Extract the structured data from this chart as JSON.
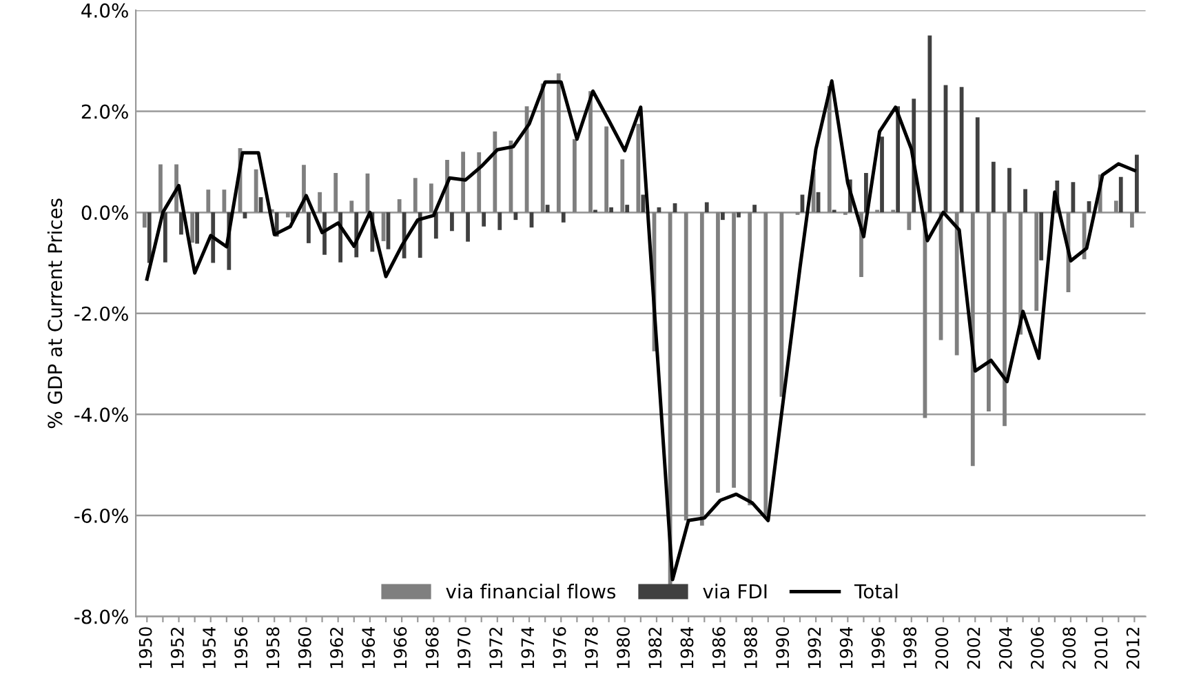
{
  "chart_data": {
    "type": "bar",
    "ylabel": "% GDP at Current Prices",
    "categories": [
      "1950",
      null,
      "1952",
      null,
      "1954",
      null,
      "1956",
      null,
      "1958",
      null,
      "1960",
      null,
      "1962",
      null,
      "1964",
      null,
      "1966",
      null,
      "1968",
      null,
      "1970",
      null,
      "1972",
      null,
      "1974",
      null,
      "1976",
      null,
      "1978",
      null,
      "1980",
      null,
      "1982",
      null,
      "1984",
      null,
      "1986",
      null,
      "1988",
      null,
      "1990",
      null,
      "1992",
      null,
      "1994",
      null,
      "1996",
      null,
      "1998",
      null,
      "2000",
      null,
      "2002",
      null,
      "2004",
      null,
      "2006",
      null,
      "2008",
      null,
      "2010",
      null,
      "2012"
    ],
    "series": [
      {
        "name": "via financial flows",
        "color": "#7f7f7f",
        "values": [
          -0.3,
          0.95,
          0.95,
          -0.6,
          0.45,
          0.45,
          1.27,
          0.85,
          0.06,
          -0.1,
          0.94,
          0.4,
          0.78,
          0.23,
          0.77,
          -0.57,
          0.26,
          0.68,
          0.57,
          1.04,
          1.2,
          1.19,
          1.6,
          1.42,
          2.1,
          2.55,
          2.75,
          1.45,
          2.4,
          1.7,
          1.05,
          1.75,
          -2.75,
          -7.4,
          -6.1,
          -6.2,
          -5.55,
          -5.45,
          -5.8,
          -6.0,
          -3.65,
          -0.05,
          0.85,
          2.5,
          -0.05,
          -1.28,
          0.05,
          0.05,
          -0.35,
          -4.07,
          -2.53,
          -2.83,
          -5.02,
          -3.94,
          -4.23,
          -2.42,
          -1.95,
          null,
          -1.58,
          -0.93,
          0.75,
          0.23,
          -0.3
        ]
      },
      {
        "name": "via FDI",
        "color": "#404040",
        "values": [
          -1.0,
          -0.99,
          -0.44,
          -0.62,
          -1.0,
          -1.14,
          -0.12,
          0.3,
          -0.48,
          -0.18,
          -0.61,
          -0.84,
          -0.99,
          -0.89,
          -0.78,
          -0.73,
          -0.91,
          -0.9,
          -0.52,
          -0.37,
          -0.58,
          -0.28,
          -0.35,
          -0.15,
          -0.3,
          0.15,
          -0.2,
          0.0,
          0.05,
          0.1,
          0.15,
          0.35,
          0.1,
          0.18,
          0.0,
          0.2,
          -0.15,
          -0.1,
          0.15,
          0.0,
          0.0,
          0.35,
          0.4,
          0.05,
          0.65,
          0.78,
          1.5,
          2.1,
          2.25,
          3.5,
          2.52,
          2.48,
          1.88,
          1.0,
          0.88,
          0.46,
          -0.95,
          0.63,
          0.6,
          0.22,
          0.0,
          0.7,
          1.14
        ]
      },
      {
        "name": "Total",
        "type": "line",
        "color": "#000000",
        "values": [
          -1.32,
          0.0,
          0.53,
          -1.2,
          -0.46,
          -0.68,
          1.18,
          1.18,
          -0.44,
          -0.28,
          0.33,
          -0.4,
          -0.21,
          -0.67,
          0.0,
          -1.27,
          -0.66,
          -0.15,
          -0.06,
          0.68,
          0.64,
          0.91,
          1.24,
          1.3,
          1.75,
          2.58,
          2.58,
          1.45,
          2.4,
          1.82,
          1.22,
          2.08,
          -2.6,
          -7.27,
          -6.1,
          -6.05,
          -5.7,
          -5.58,
          -5.75,
          -6.1,
          -3.6,
          -1.1,
          1.25,
          2.6,
          0.58,
          -0.48,
          1.6,
          2.08,
          1.25,
          -0.56,
          0.0,
          -0.35,
          -3.14,
          -2.93,
          -3.35,
          -1.96,
          -2.89,
          0.4,
          -0.96,
          -0.71,
          0.74,
          0.96,
          0.83
        ]
      }
    ],
    "ylim": [
      -8,
      4
    ],
    "yticks": [
      {
        "value": -8,
        "label": "-8.0%"
      },
      {
        "value": -6,
        "label": "-6.0%"
      },
      {
        "value": -4,
        "label": "-4.0%"
      },
      {
        "value": -2,
        "label": "-2.0%"
      },
      {
        "value": 0,
        "label": "0.0%"
      },
      {
        "value": 2,
        "label": "2.0%"
      },
      {
        "value": 4,
        "label": "4.0%"
      }
    ],
    "grid": "y",
    "legend": "bottom"
  }
}
